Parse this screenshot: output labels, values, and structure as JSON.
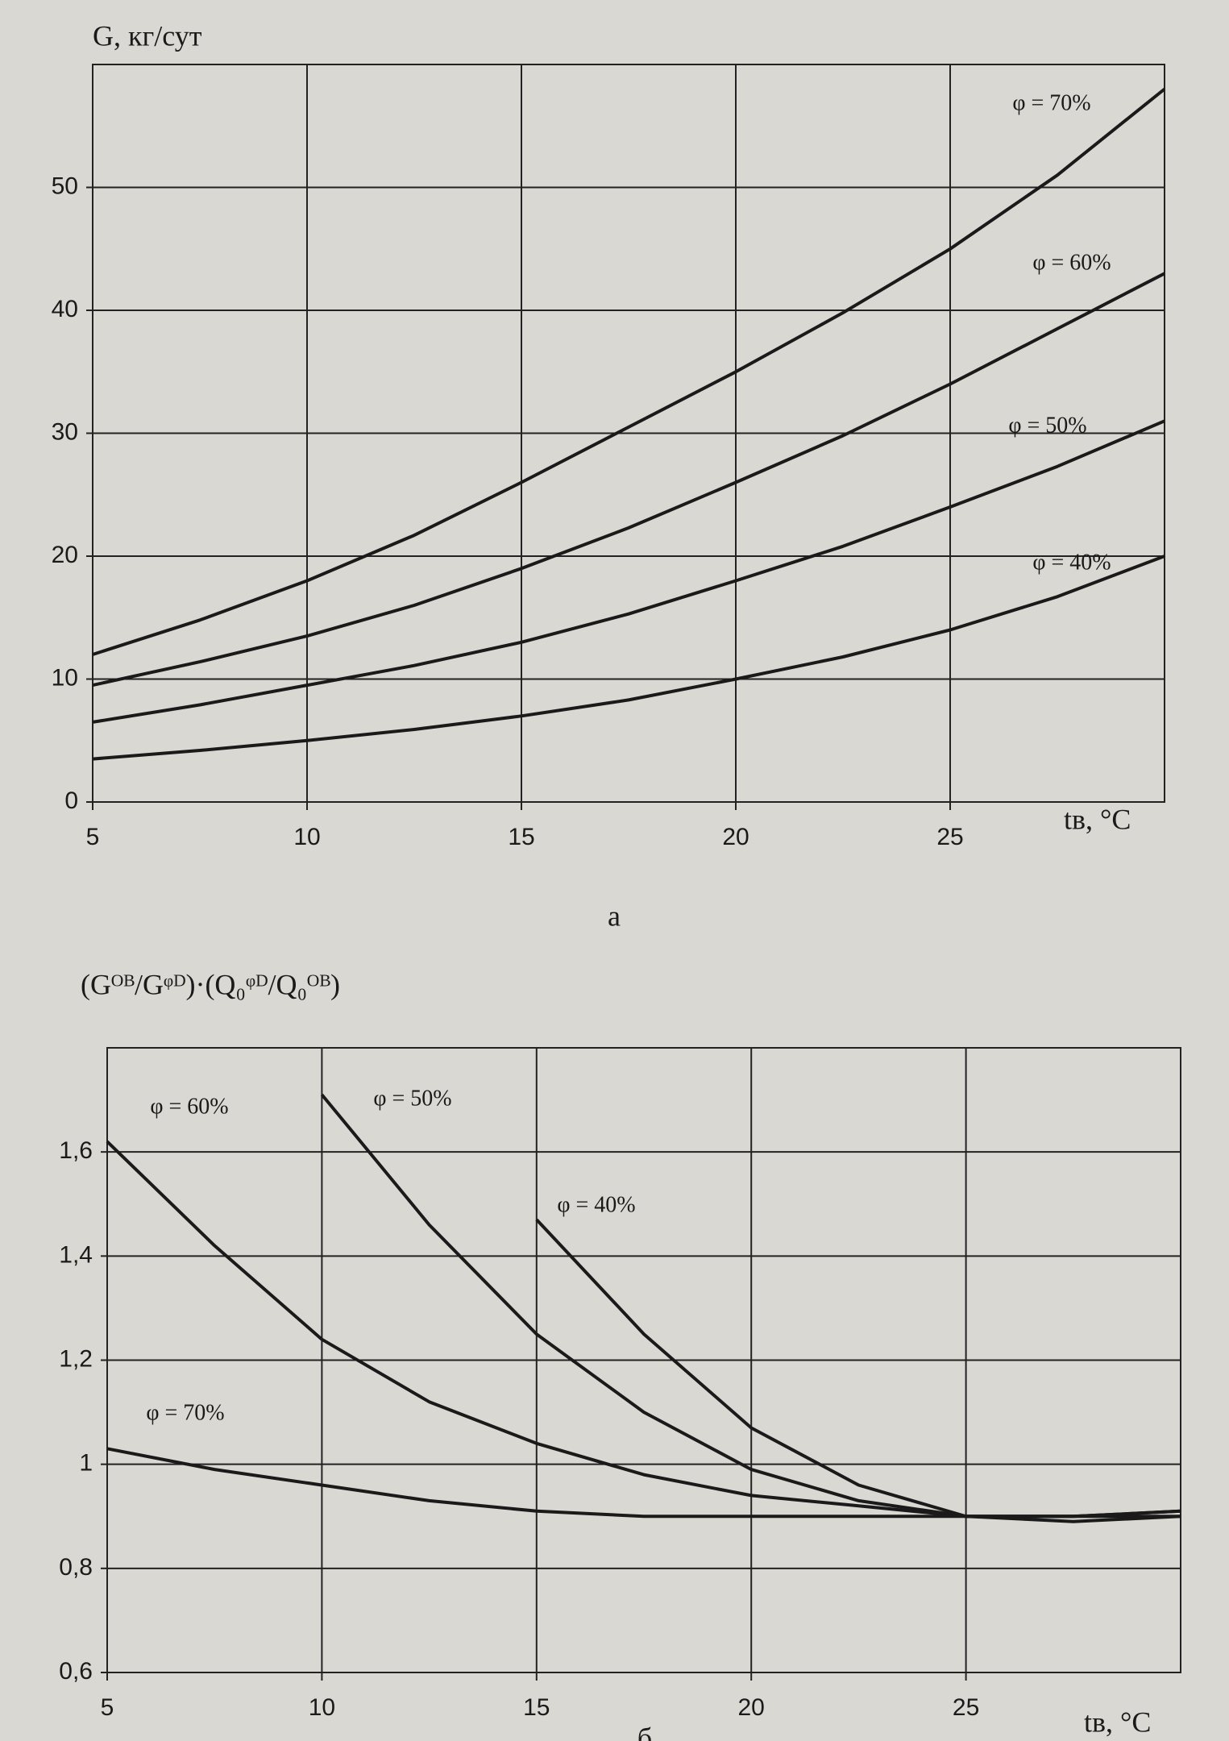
{
  "chart_data": [
    {
      "type": "line",
      "y_label": "G, кг/сут",
      "x_label": "tв, °C",
      "caption": "а",
      "x": [
        5,
        7.5,
        10,
        12.5,
        15,
        17.5,
        20,
        22.5,
        25,
        27.5,
        30
      ],
      "xlim": [
        5,
        30
      ],
      "xticks": [
        5,
        10,
        15,
        20,
        25
      ],
      "ylim": [
        0,
        60
      ],
      "yticks": [
        0,
        10,
        20,
        30,
        40,
        50
      ],
      "grid": true,
      "series": [
        {
          "name": "φ = 70%",
          "color": "#1a1a1a",
          "values": [
            12,
            14.8,
            18,
            21.7,
            26,
            30.5,
            35,
            39.8,
            45,
            51,
            58
          ]
        },
        {
          "name": "φ = 60%",
          "color": "#1a1a1a",
          "values": [
            9.5,
            11.4,
            13.5,
            16,
            19,
            22.3,
            26,
            29.8,
            34,
            38.5,
            43
          ]
        },
        {
          "name": "φ = 50%",
          "color": "#1a1a1a",
          "values": [
            6.5,
            7.9,
            9.5,
            11.1,
            13,
            15.3,
            18,
            20.8,
            24,
            27.3,
            31
          ]
        },
        {
          "name": "φ = 40%",
          "color": "#1a1a1a",
          "values": [
            3.5,
            4.2,
            5,
            5.9,
            7,
            8.3,
            10,
            11.8,
            14,
            16.7,
            20
          ]
        }
      ]
    },
    {
      "type": "line",
      "y_label": "(Gᴼᴮ/Gᵠᴰ)·(Q₀ᵠᴰ/Q₀ᴼᴮ)",
      "x_label": "tв, °C",
      "caption": "б",
      "x": [
        5,
        7.5,
        10,
        12.5,
        15,
        17.5,
        20,
        22.5,
        25,
        27.5,
        30
      ],
      "xlim": [
        5,
        30
      ],
      "xticks": [
        5,
        10,
        15,
        20,
        25
      ],
      "ylim": [
        0.6,
        1.8
      ],
      "yticks": [
        {
          "value": 0.6,
          "label": "0,6"
        },
        {
          "value": 0.8,
          "label": "0,8"
        },
        1,
        {
          "value": 1.2,
          "label": "1,2"
        },
        {
          "value": 1.4,
          "label": "1,4"
        },
        {
          "value": 1.6,
          "label": "1,6"
        }
      ],
      "grid": true,
      "series": [
        {
          "name": "φ = 60%",
          "color": "#1a1a1a",
          "values": [
            1.62,
            1.42,
            1.24,
            1.12,
            1.04,
            0.98,
            0.94,
            0.92,
            0.9,
            0.9,
            0.9
          ]
        },
        {
          "name": "φ = 50%",
          "color": "#1a1a1a",
          "values": [
            null,
            null,
            1.71,
            1.46,
            1.25,
            1.1,
            0.99,
            0.93,
            0.9,
            0.9,
            0.91
          ]
        },
        {
          "name": "φ = 40%",
          "color": "#1a1a1a",
          "values": [
            null,
            null,
            null,
            null,
            1.47,
            1.25,
            1.07,
            0.96,
            0.9,
            0.89,
            0.9
          ]
        },
        {
          "name": "φ = 70%",
          "color": "#1a1a1a",
          "values": [
            1.03,
            0.99,
            0.96,
            0.93,
            0.91,
            0.9,
            0.9,
            0.9,
            0.9,
            0.9,
            0.91
          ]
        }
      ]
    }
  ]
}
